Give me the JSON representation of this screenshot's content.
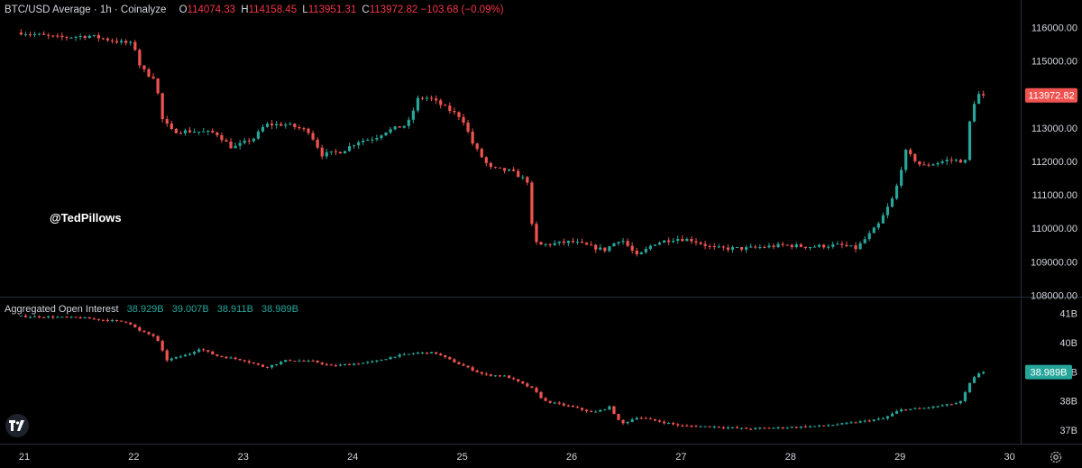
{
  "price_pane": {
    "title": "BTC/USD Average · 1h · Coinalyze",
    "ohlc": [
      {
        "label": "O",
        "value": "114074.33"
      },
      {
        "label": "H",
        "value": "114158.45"
      },
      {
        "label": "L",
        "value": "113951.31"
      },
      {
        "label": "C",
        "value": "113972.82"
      },
      {
        "label": "",
        "value": "−103.68 (−0.09%)"
      }
    ],
    "last_price": "113972.82"
  },
  "oi_pane": {
    "title": "Aggregated Open Interest",
    "values": [
      "38.929B",
      "39.007B",
      "38.911B",
      "38.989B"
    ],
    "last_value": "38.989B"
  },
  "watermark": "@TedPillows",
  "logo": "tradingview-logo-icon",
  "settings_icon": "gear-icon",
  "colors": {
    "up": "#26a69a",
    "down": "#ef5350",
    "background": "#000000",
    "axis_text": "#d1d4dc",
    "grid_border": "#2a2e39"
  },
  "chart_data": [
    {
      "type": "candlestick",
      "title": "BTC/USD Average · 1h · Coinalyze",
      "x_ticks": [
        "21",
        "22",
        "23",
        "24",
        "25",
        "26",
        "27",
        "28",
        "29",
        "30"
      ],
      "y_ticks": [
        "116000.00",
        "115000.00",
        "114000.00",
        "113000.00",
        "112000.00",
        "111000.00",
        "110000.00",
        "109000.00",
        "108000.00"
      ],
      "ylim": [
        107900,
        116600
      ],
      "xlim": [
        21,
        30
      ],
      "close_path": [
        [
          20.97,
          115850
        ],
        [
          21.3,
          115700
        ],
        [
          21.6,
          115750
        ],
        [
          21.9,
          115550
        ],
        [
          22.0,
          115500
        ],
        [
          22.05,
          114900
        ],
        [
          22.12,
          114600
        ],
        [
          22.2,
          114500
        ],
        [
          22.25,
          113300
        ],
        [
          22.35,
          112900
        ],
        [
          22.55,
          112900
        ],
        [
          22.75,
          112850
        ],
        [
          22.9,
          112400
        ],
        [
          23.1,
          112700
        ],
        [
          23.2,
          113100
        ],
        [
          23.4,
          113100
        ],
        [
          23.6,
          112900
        ],
        [
          23.72,
          112200
        ],
        [
          23.9,
          112300
        ],
        [
          24.05,
          112600
        ],
        [
          24.2,
          112700
        ],
        [
          24.3,
          112900
        ],
        [
          24.5,
          113100
        ],
        [
          24.6,
          113900
        ],
        [
          24.7,
          113900
        ],
        [
          24.85,
          113600
        ],
        [
          25.0,
          113300
        ],
        [
          25.1,
          112500
        ],
        [
          25.25,
          111800
        ],
        [
          25.45,
          111700
        ],
        [
          25.6,
          111400
        ],
        [
          25.65,
          109600
        ],
        [
          25.72,
          109500
        ],
        [
          26.0,
          109600
        ],
        [
          26.3,
          109350
        ],
        [
          26.45,
          109700
        ],
        [
          26.6,
          109150
        ],
        [
          26.75,
          109550
        ],
        [
          26.95,
          109700
        ],
        [
          27.1,
          109650
        ],
        [
          27.3,
          109400
        ],
        [
          27.6,
          109400
        ],
        [
          27.95,
          109500
        ],
        [
          28.15,
          109450
        ],
        [
          28.45,
          109500
        ],
        [
          28.6,
          109400
        ],
        [
          28.8,
          110100
        ],
        [
          28.95,
          111000
        ],
        [
          29.05,
          112300
        ],
        [
          29.2,
          111850
        ],
        [
          29.45,
          112050
        ],
        [
          29.6,
          112000
        ],
        [
          29.65,
          113600
        ],
        [
          29.72,
          114000
        ],
        [
          29.78,
          113972.82
        ]
      ]
    },
    {
      "type": "candlestick",
      "title": "Aggregated Open Interest",
      "unit": "B",
      "y_ticks": [
        "41B",
        "40B",
        "39B",
        "38B",
        "37B"
      ],
      "ylim": [
        36.62,
        41.18
      ],
      "close_path": [
        [
          20.97,
          40.9
        ],
        [
          21.5,
          40.85
        ],
        [
          21.95,
          40.7
        ],
        [
          22.05,
          40.4
        ],
        [
          22.2,
          40.2
        ],
        [
          22.3,
          39.4
        ],
        [
          22.5,
          39.6
        ],
        [
          22.6,
          39.8
        ],
        [
          22.75,
          39.55
        ],
        [
          23.0,
          39.4
        ],
        [
          23.2,
          39.15
        ],
        [
          23.4,
          39.4
        ],
        [
          23.65,
          39.35
        ],
        [
          23.8,
          39.2
        ],
        [
          23.95,
          39.25
        ],
        [
          24.2,
          39.35
        ],
        [
          24.4,
          39.55
        ],
        [
          24.6,
          39.65
        ],
        [
          24.75,
          39.65
        ],
        [
          24.95,
          39.3
        ],
        [
          25.2,
          38.9
        ],
        [
          25.4,
          38.85
        ],
        [
          25.6,
          38.5
        ],
        [
          25.65,
          38.4
        ],
        [
          25.75,
          38.0
        ],
        [
          26.0,
          37.8
        ],
        [
          26.2,
          37.6
        ],
        [
          26.35,
          37.8
        ],
        [
          26.45,
          37.2
        ],
        [
          26.6,
          37.45
        ],
        [
          26.8,
          37.3
        ],
        [
          27.0,
          37.15
        ],
        [
          27.3,
          37.12
        ],
        [
          27.6,
          37.05
        ],
        [
          28.0,
          37.1
        ],
        [
          28.3,
          37.15
        ],
        [
          28.55,
          37.25
        ],
        [
          28.85,
          37.4
        ],
        [
          29.0,
          37.7
        ],
        [
          29.2,
          37.75
        ],
        [
          29.4,
          37.85
        ],
        [
          29.55,
          37.95
        ],
        [
          29.65,
          38.7
        ],
        [
          29.72,
          38.95
        ],
        [
          29.78,
          38.989
        ]
      ]
    }
  ]
}
